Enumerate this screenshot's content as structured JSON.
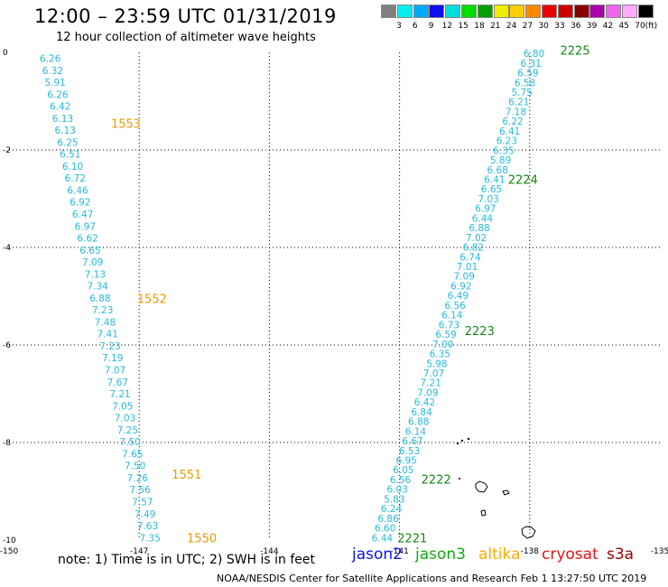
{
  "title": "12:00 – 23:59 UTC 01/31/2019",
  "subtitle": "12 hour collection of altimeter wave heights",
  "legend": {
    "unit": "(ft)",
    "bins": [
      {
        "label": "3",
        "color": "#808080"
      },
      {
        "label": "6",
        "color": "#00eeee"
      },
      {
        "label": "9",
        "color": "#00aaff"
      },
      {
        "label": "12",
        "color": "#1010ee"
      },
      {
        "label": "15",
        "color": "#00dddd"
      },
      {
        "label": "18",
        "color": "#00dd00"
      },
      {
        "label": "21",
        "color": "#00a000"
      },
      {
        "label": "24",
        "color": "#eeee00"
      },
      {
        "label": "27",
        "color": "#ffcc00"
      },
      {
        "label": "30",
        "color": "#ff8800"
      },
      {
        "label": "33",
        "color": "#ee0000"
      },
      {
        "label": "36",
        "color": "#cc0000"
      },
      {
        "label": "39",
        "color": "#880000"
      },
      {
        "label": "42",
        "color": "#aa00aa"
      },
      {
        "label": "45",
        "color": "#ee66ee"
      },
      {
        "label": "70",
        "color": "#ffaaff"
      },
      {
        "label": "",
        "color": "#000000"
      }
    ]
  },
  "axes": {
    "lon_ticks": [
      "-150",
      "-147",
      "-144",
      "-141",
      "-138",
      "-135"
    ],
    "lat_ticks": [
      "0",
      "-2",
      "-4",
      "-6",
      "-8",
      "-10"
    ]
  },
  "tracks": [
    {
      "name": "left-track",
      "color": "#22bbdd",
      "lon_start": -149.05,
      "lon_end": -146.75,
      "lat_start": -0.12,
      "lat_end": -9.95,
      "values": [
        "6.26",
        "6.32",
        "5.91",
        "6.26",
        "6.42",
        "6.13",
        "6.13",
        "6.25",
        "6.51",
        "6.10",
        "6.72",
        "6.46",
        "6.92",
        "6.47",
        "6.97",
        "6.62",
        "6.65",
        "7.09",
        "7.13",
        "7.34",
        "6.88",
        "7.23",
        "7.48",
        "7.41",
        "7.23",
        "7.19",
        "7.07",
        "7.67",
        "7.21",
        "7.05",
        "7.03",
        "7.25",
        "7.50",
        "7.65",
        "7.50",
        "7.26",
        "7.56",
        "7.57",
        "7.49",
        "7.63",
        "7.35"
      ]
    },
    {
      "name": "right-track",
      "color": "#22bbdd",
      "lon_start": -137.9,
      "lon_end": -141.4,
      "lat_start": -0.02,
      "lat_end": -9.95,
      "values": [
        "6.80",
        "6.31",
        "6.59",
        "6.58",
        "5.75",
        "6.21",
        "7.18",
        "6.22",
        "6.41",
        "6.23",
        "6.35",
        "5.89",
        "6.68",
        "6.41",
        "6.65",
        "7.03",
        "6.97",
        "6.44",
        "6.88",
        "7.02",
        "6.82",
        "6.74",
        "7.01",
        "7.09",
        "6.92",
        "6.49",
        "6.56",
        "6.14",
        "6.73",
        "6.59",
        "7.00",
        "6.35",
        "5.98",
        "7.07",
        "7.21",
        "7.09",
        "6.42",
        "6.84",
        "6.88",
        "6.14",
        "6.67",
        "6.53",
        "6.95",
        "6.05",
        "6.56",
        "6.03",
        "5.83",
        "6.24",
        "6.86",
        "6.60",
        "6.44"
      ]
    }
  ],
  "time_labels": [
    {
      "text": "1553",
      "lon": -147.65,
      "lat": -1.45,
      "color": "#ee9900"
    },
    {
      "text": "1552",
      "lon": -147.05,
      "lat": -5.05,
      "color": "#ee9900"
    },
    {
      "text": "1551",
      "lon": -146.25,
      "lat": -8.65,
      "color": "#ee9900"
    },
    {
      "text": "1550",
      "lon": -145.9,
      "lat": -9.95,
      "color": "#ee9900"
    },
    {
      "text": "2225",
      "lon": -137.3,
      "lat": 0.05,
      "color": "#118811"
    },
    {
      "text": "2224",
      "lon": -138.5,
      "lat": -2.6,
      "color": "#118811"
    },
    {
      "text": "2223",
      "lon": -139.5,
      "lat": -5.7,
      "color": "#118811"
    },
    {
      "text": "2222",
      "lon": -140.5,
      "lat": -8.75,
      "color": "#118811"
    },
    {
      "text": "2221",
      "lon": -141.05,
      "lat": -9.95,
      "color": "#118811"
    }
  ],
  "note": "note: 1) Time is in UTC; 2) SWH is in feet",
  "satellites": [
    {
      "name": "jason2",
      "color": "#1111ee"
    },
    {
      "name": "jason3",
      "color": "#11aa11"
    },
    {
      "name": "altika",
      "color": "#ffaa00"
    },
    {
      "name": "cryosat",
      "color": "#ee1111"
    },
    {
      "name": "s3a",
      "color": "#990000"
    }
  ],
  "credit": "NOAA/NESDIS Center for Satellite Applications and Research    Feb  1 13:27:50 UTC 2019"
}
